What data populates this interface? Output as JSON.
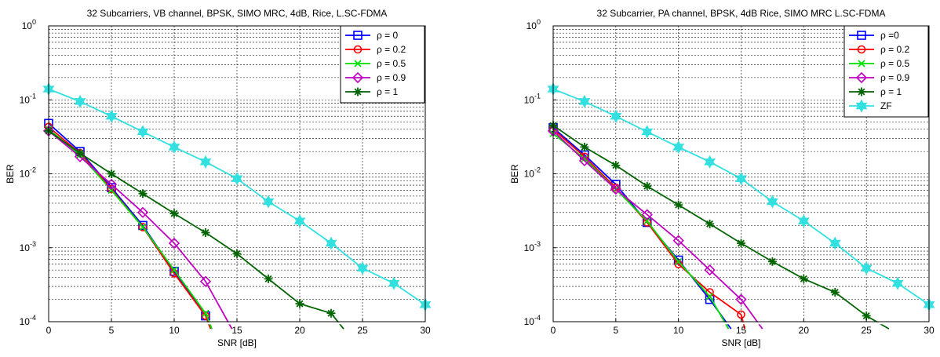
{
  "chart_data": [
    {
      "type": "line",
      "title": "32 Subcarriers, VB channel, BPSK, SIMO MRC, 4dB, Rice, L.SC-FDMA",
      "xlabel": "SNR [dB]",
      "ylabel": "BER",
      "xlim": [
        0,
        30
      ],
      "ylim": [
        0.0001,
        1
      ],
      "yscale": "log",
      "grid": true,
      "legend_position": "top-right",
      "x_ticks": [
        "0",
        "5",
        "10",
        "15",
        "20",
        "25",
        "30"
      ],
      "y_ticks": [
        {
          "base": "10",
          "exp": "0"
        },
        {
          "base": "10",
          "exp": "-1"
        },
        {
          "base": "10",
          "exp": "-2"
        },
        {
          "base": "10",
          "exp": "-3"
        },
        {
          "base": "10",
          "exp": "-4"
        }
      ],
      "series": [
        {
          "name": "ρ = 0",
          "color": "#0000ff",
          "marker": "square",
          "in_legend": true,
          "x": [
            0,
            2.5,
            5,
            7.5,
            10,
            12.5,
            13.0
          ],
          "y": [
            0.048,
            0.02,
            0.0065,
            0.002,
            0.00048,
            0.00012,
            8e-05
          ]
        },
        {
          "name": "ρ = 0.2",
          "color": "#ff0000",
          "marker": "circle",
          "in_legend": true,
          "x": [
            0,
            2.5,
            5,
            7.5,
            10,
            12.5,
            12.9
          ],
          "y": [
            0.043,
            0.019,
            0.0062,
            0.0019,
            0.00045,
            0.00012,
            8e-05
          ]
        },
        {
          "name": "ρ = 0.5",
          "color": "#00e000",
          "marker": "x",
          "in_legend": true,
          "x": [
            0,
            2.5,
            5,
            7.5,
            10,
            12.5,
            13.0
          ],
          "y": [
            0.04,
            0.018,
            0.006,
            0.0019,
            0.0005,
            0.00013,
            8e-05
          ]
        },
        {
          "name": "ρ = 0.9",
          "color": "#c000c0",
          "marker": "diamond",
          "in_legend": true,
          "x": [
            0,
            2.5,
            5,
            7.5,
            10,
            12.5,
            14.6
          ],
          "y": [
            0.038,
            0.017,
            0.0072,
            0.003,
            0.00115,
            0.00035,
            8e-05
          ]
        },
        {
          "name": "ρ = 1",
          "color": "#006400",
          "marker": "star",
          "in_legend": true,
          "x": [
            0,
            2.5,
            5,
            7.5,
            10,
            12.5,
            15,
            17.5,
            20,
            22.5,
            23.5
          ],
          "y": [
            0.038,
            0.019,
            0.01,
            0.0054,
            0.0029,
            0.0016,
            0.00083,
            0.00038,
            0.000175,
            0.00013,
            8e-05
          ]
        },
        {
          "name": "",
          "color": "#33e0e0",
          "marker": "hexagram",
          "in_legend": false,
          "x": [
            0,
            2.5,
            5,
            7.5,
            10,
            12.5,
            15,
            17.5,
            20,
            22.5,
            25,
            27.5,
            30
          ],
          "y": [
            0.14,
            0.095,
            0.06,
            0.037,
            0.023,
            0.0145,
            0.0086,
            0.0042,
            0.0023,
            0.00115,
            0.00053,
            0.00033,
            0.00017
          ]
        }
      ]
    },
    {
      "type": "line",
      "title": "32 Subcarrier, PA channel, BPSK, 4dB Rice, SIMO MRC L.SC-FDMA",
      "xlabel": "SNR [dB]",
      "ylabel": "BER",
      "xlim": [
        0,
        30
      ],
      "ylim": [
        0.0001,
        1
      ],
      "yscale": "log",
      "grid": true,
      "legend_position": "top-right",
      "x_ticks": [
        "0",
        "5",
        "10",
        "15",
        "20",
        "25",
        "30"
      ],
      "y_ticks": [
        {
          "base": "10",
          "exp": "0"
        },
        {
          "base": "10",
          "exp": "-1"
        },
        {
          "base": "10",
          "exp": "-2"
        },
        {
          "base": "10",
          "exp": "-3"
        },
        {
          "base": "10",
          "exp": "-4"
        }
      ],
      "series": [
        {
          "name": "ρ =0",
          "color": "#0000ff",
          "marker": "square",
          "in_legend": true,
          "x": [
            0,
            2.5,
            5,
            7.5,
            10,
            12.5,
            14.2
          ],
          "y": [
            0.042,
            0.018,
            0.0072,
            0.0022,
            0.00068,
            0.0002,
            8e-05
          ]
        },
        {
          "name": "ρ = 0.2",
          "color": "#ff0000",
          "marker": "circle",
          "in_legend": true,
          "x": [
            0,
            2.5,
            5,
            7.5,
            10,
            12.5,
            15,
            15.3
          ],
          "y": [
            0.04,
            0.017,
            0.0065,
            0.0022,
            0.0006,
            0.00025,
            0.000125,
            8e-05
          ]
        },
        {
          "name": "ρ = 0.5",
          "color": "#00e000",
          "marker": "x",
          "in_legend": true,
          "x": [
            0,
            2.5,
            5,
            7.5,
            10,
            12.5,
            14.0
          ],
          "y": [
            0.035,
            0.016,
            0.0062,
            0.0023,
            0.00065,
            0.00022,
            8e-05
          ]
        },
        {
          "name": "ρ = 0.9",
          "color": "#c000c0",
          "marker": "diamond",
          "in_legend": true,
          "x": [
            0,
            2.5,
            5,
            7.5,
            10,
            12.5,
            15,
            16.7
          ],
          "y": [
            0.038,
            0.015,
            0.0062,
            0.0028,
            0.00125,
            0.0005,
            0.0002,
            8e-05
          ]
        },
        {
          "name": "ρ = 1",
          "color": "#006400",
          "marker": "star",
          "in_legend": true,
          "x": [
            0,
            2.5,
            5,
            7.5,
            10,
            12.5,
            15,
            17.5,
            20,
            22.5,
            25,
            26.8
          ],
          "y": [
            0.045,
            0.023,
            0.013,
            0.0068,
            0.0038,
            0.0021,
            0.00115,
            0.00065,
            0.00038,
            0.00025,
            0.00012,
            8e-05
          ]
        },
        {
          "name": "ZF",
          "color": "#33e0e0",
          "marker": "hexagram",
          "in_legend": true,
          "x": [
            0,
            2.5,
            5,
            7.5,
            10,
            12.5,
            15,
            17.5,
            20,
            22.5,
            25,
            27.5,
            30
          ],
          "y": [
            0.14,
            0.095,
            0.06,
            0.037,
            0.023,
            0.0145,
            0.0086,
            0.0042,
            0.0023,
            0.00115,
            0.00053,
            0.00033,
            0.00017
          ]
        }
      ]
    }
  ]
}
